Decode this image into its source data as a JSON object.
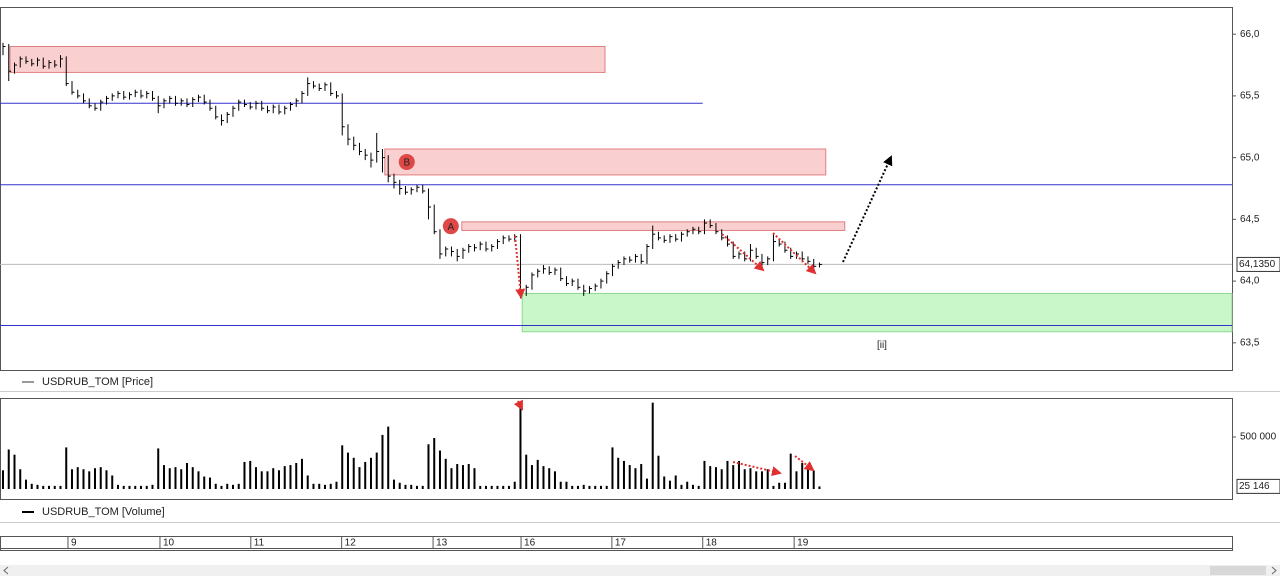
{
  "chart_data": [
    {
      "type": "ohlc",
      "series": [
        {
          "name": "USDRUB_TOM [Price]",
          "color": "#000000",
          "high": [
            65.93,
            65.92,
            65.77,
            65.82,
            65.82,
            65.8,
            65.81,
            65.81,
            65.79,
            65.79,
            65.83,
            65.82,
            65.62,
            65.55,
            65.52,
            65.48,
            65.44,
            65.47,
            65.5,
            65.52,
            65.54,
            65.54,
            65.53,
            65.55,
            65.55,
            65.54,
            65.54,
            65.5,
            65.48,
            65.5,
            65.5,
            65.48,
            65.48,
            65.49,
            65.51,
            65.51,
            65.47,
            65.42,
            65.35,
            65.37,
            65.42,
            65.47,
            65.47,
            65.45,
            65.46,
            65.46,
            65.42,
            65.43,
            65.43,
            65.42,
            65.45,
            65.48,
            65.54,
            65.65,
            65.62,
            65.6,
            65.61,
            65.61,
            65.54,
            65.52,
            65.27,
            65.17,
            65.12,
            65.07,
            65.04,
            65.2,
            65.07,
            65.02,
            64.87,
            64.82,
            64.77,
            64.76,
            64.78,
            64.78,
            64.75,
            64.62,
            64.42,
            64.28,
            64.28,
            64.26,
            64.27,
            64.3,
            64.3,
            64.32,
            64.32,
            64.3,
            64.34,
            64.37,
            64.37,
            64.38,
            64.38,
            63.97,
            64.07,
            64.1,
            64.13,
            64.12,
            64.11,
            64.11,
            64.04,
            64.02,
            64.02,
            63.97,
            63.96,
            63.98,
            64.02,
            64.08,
            64.14,
            64.17,
            64.2,
            64.2,
            64.22,
            64.22,
            64.3,
            64.45,
            64.4,
            64.37,
            64.38,
            64.38,
            64.4,
            64.42,
            64.44,
            64.44,
            64.5,
            64.5,
            64.47,
            64.42,
            64.37,
            64.32,
            64.24,
            64.24,
            64.3,
            64.27,
            64.22,
            64.2,
            64.38,
            64.34,
            64.32,
            64.27,
            64.24,
            64.24,
            64.2,
            64.18,
            64.15
          ],
          "low": [
            65.83,
            65.62,
            65.68,
            65.73,
            65.76,
            65.74,
            65.74,
            65.72,
            65.72,
            65.73,
            65.73,
            65.58,
            65.51,
            65.48,
            65.44,
            65.4,
            65.38,
            65.38,
            65.43,
            65.46,
            65.48,
            65.47,
            65.47,
            65.49,
            65.48,
            65.48,
            65.46,
            65.36,
            65.4,
            65.44,
            65.42,
            65.42,
            65.41,
            65.41,
            65.45,
            65.43,
            65.38,
            65.31,
            65.26,
            65.28,
            65.33,
            65.38,
            65.41,
            65.39,
            65.39,
            65.38,
            65.36,
            65.36,
            65.35,
            65.35,
            65.38,
            65.41,
            65.44,
            65.5,
            65.56,
            65.54,
            65.54,
            65.5,
            65.48,
            65.18,
            65.1,
            65.06,
            65.02,
            64.98,
            64.92,
            64.96,
            64.88,
            64.8,
            64.75,
            64.7,
            64.7,
            64.7,
            64.72,
            64.71,
            64.5,
            64.38,
            64.18,
            64.2,
            64.2,
            64.16,
            64.18,
            64.23,
            64.24,
            64.25,
            64.24,
            64.24,
            64.26,
            64.3,
            64.32,
            64.32,
            63.86,
            63.88,
            63.93,
            64.03,
            64.06,
            64.05,
            64.05,
            64.0,
            63.96,
            63.96,
            63.93,
            63.88,
            63.9,
            63.92,
            63.94,
            63.98,
            64.04,
            64.1,
            64.13,
            64.15,
            64.15,
            64.14,
            64.14,
            64.26,
            64.33,
            64.31,
            64.31,
            64.32,
            64.32,
            64.36,
            64.38,
            64.38,
            64.38,
            64.43,
            64.38,
            64.33,
            64.28,
            64.18,
            64.18,
            64.16,
            64.16,
            64.18,
            64.12,
            64.13,
            64.16,
            64.28,
            64.23,
            64.18,
            64.18,
            64.16,
            64.14,
            64.1,
            64.11
          ],
          "close": [
            65.9,
            65.7,
            65.75,
            65.8,
            65.78,
            65.76,
            65.79,
            65.74,
            65.77,
            65.75,
            65.8,
            65.6,
            65.53,
            65.5,
            65.46,
            65.42,
            65.4,
            65.45,
            65.48,
            65.5,
            65.52,
            65.49,
            65.51,
            65.53,
            65.5,
            65.52,
            65.48,
            65.42,
            65.46,
            65.48,
            65.44,
            65.46,
            65.43,
            65.47,
            65.49,
            65.45,
            65.4,
            65.33,
            65.3,
            65.35,
            65.4,
            65.45,
            65.43,
            65.41,
            65.44,
            65.4,
            65.38,
            65.41,
            65.37,
            65.4,
            65.43,
            65.46,
            65.52,
            65.6,
            65.58,
            65.56,
            65.59,
            65.52,
            65.5,
            65.25,
            65.15,
            65.1,
            65.05,
            65.02,
            64.98,
            65.05,
            65.0,
            64.85,
            64.8,
            64.75,
            64.72,
            64.74,
            64.76,
            64.73,
            64.6,
            64.4,
            64.22,
            64.26,
            64.24,
            64.2,
            64.25,
            64.28,
            64.27,
            64.3,
            64.26,
            64.28,
            64.32,
            64.35,
            64.34,
            64.36,
            63.92,
            63.95,
            64.05,
            64.08,
            64.1,
            64.07,
            64.09,
            64.02,
            63.98,
            64.0,
            63.95,
            63.92,
            63.94,
            63.96,
            64.0,
            64.06,
            64.12,
            64.15,
            64.18,
            64.17,
            64.2,
            64.16,
            64.28,
            64.38,
            64.35,
            64.33,
            64.36,
            64.34,
            64.38,
            64.4,
            64.42,
            64.4,
            64.47,
            64.45,
            64.4,
            64.35,
            64.3,
            64.2,
            64.22,
            64.18,
            64.25,
            64.2,
            64.15,
            64.18,
            64.32,
            64.3,
            64.25,
            64.2,
            64.22,
            64.18,
            64.16,
            64.12,
            64.135
          ]
        }
      ],
      "xlim": [
        -0.52,
        213.75
      ],
      "ylim": [
        63.28,
        66.22
      ],
      "yticks": [
        {
          "value": 66.0,
          "label": "66,0"
        },
        {
          "value": 65.5,
          "label": "65,5"
        },
        {
          "value": 65.0,
          "label": "65,0"
        },
        {
          "value": 64.5,
          "label": "64,5"
        },
        {
          "value": 64.0,
          "label": "64,0"
        },
        {
          "value": 63.5,
          "label": "63,5"
        }
      ],
      "last_value_label": "64,1350",
      "price_line_color": "#bbbbbb",
      "levels": [
        {
          "value": 65.44,
          "color": "#3333cc",
          "x": [
            -0.52,
            121.7
          ]
        },
        {
          "value": 64.78,
          "color": "#3333cc",
          "x": [
            -0.52,
            213.75
          ]
        },
        {
          "value": 63.64,
          "color": "#3333cc",
          "x": [
            -0.52,
            213.75
          ]
        }
      ],
      "zones": [
        {
          "y": [
            65.69,
            65.9
          ],
          "x": [
            1.22,
            104.7
          ],
          "fill": "#f9cfcf",
          "stroke": "#e08080"
        },
        {
          "y": [
            64.86,
            65.07
          ],
          "x": [
            66.4,
            143.1
          ],
          "fill": "#f9cfcf",
          "stroke": "#e08080",
          "label": "B"
        },
        {
          "y": [
            64.41,
            64.48
          ],
          "x": [
            79.8,
            146.4
          ],
          "fill": "#f9cfcf",
          "stroke": "#e08080",
          "label": "A"
        },
        {
          "y": [
            63.59,
            63.9
          ],
          "x": [
            90.3,
            213.75
          ],
          "fill": "#c9f7c9",
          "stroke": "#8ed98e"
        }
      ],
      "annotations": [
        {
          "text": "[ii]",
          "x": 152,
          "y": 63.48
        }
      ]
    },
    {
      "type": "bar",
      "series": [
        {
          "name": "USDRUB_TOM [Volume]",
          "color": "#000000",
          "values": [
            180000,
            380000,
            330000,
            190000,
            90000,
            50000,
            40000,
            30000,
            30000,
            30000,
            30000,
            400000,
            190000,
            210000,
            190000,
            170000,
            200000,
            210000,
            180000,
            130000,
            40000,
            30000,
            30000,
            30000,
            30000,
            30000,
            40000,
            390000,
            230000,
            200000,
            210000,
            190000,
            250000,
            210000,
            170000,
            120000,
            110000,
            50000,
            30000,
            50000,
            40000,
            50000,
            260000,
            270000,
            210000,
            170000,
            170000,
            200000,
            180000,
            220000,
            230000,
            250000,
            290000,
            130000,
            50000,
            50000,
            40000,
            50000,
            70000,
            420000,
            350000,
            300000,
            210000,
            260000,
            300000,
            350000,
            520000,
            600000,
            90000,
            60000,
            40000,
            40000,
            30000,
            30000,
            430000,
            490000,
            370000,
            290000,
            200000,
            240000,
            230000,
            240000,
            200000,
            30000,
            30000,
            30000,
            30000,
            30000,
            30000,
            70000,
            840000,
            330000,
            230000,
            280000,
            220000,
            200000,
            170000,
            70000,
            70000,
            30000,
            30000,
            40000,
            30000,
            30000,
            30000,
            30000,
            400000,
            300000,
            270000,
            230000,
            200000,
            240000,
            100000,
            830000,
            320000,
            120000,
            80000,
            130000,
            40000,
            70000,
            40000,
            30000,
            270000,
            220000,
            210000,
            190000,
            270000,
            230000,
            270000,
            190000,
            200000,
            170000,
            170000,
            190000,
            30000,
            60000,
            60000,
            340000,
            170000,
            250000,
            220000,
            180000,
            25146
          ]
        }
      ],
      "xlim": [
        -0.52,
        213.75
      ],
      "ylim": [
        0,
        875000
      ],
      "yticks": [
        {
          "value": 500000,
          "label": "500 000"
        }
      ],
      "last_value_label": "25 146",
      "xticks": [
        {
          "value": 11.3,
          "label": "9"
        },
        {
          "value": 27.3,
          "label": "10"
        },
        {
          "value": 43.1,
          "label": "11"
        },
        {
          "value": 58.9,
          "label": "12"
        },
        {
          "value": 74.8,
          "label": "13"
        },
        {
          "value": 90.1,
          "label": "16"
        },
        {
          "value": 105.9,
          "label": "17"
        },
        {
          "value": 121.7,
          "label": "18"
        },
        {
          "value": 137.6,
          "label": "19"
        }
      ]
    }
  ]
}
